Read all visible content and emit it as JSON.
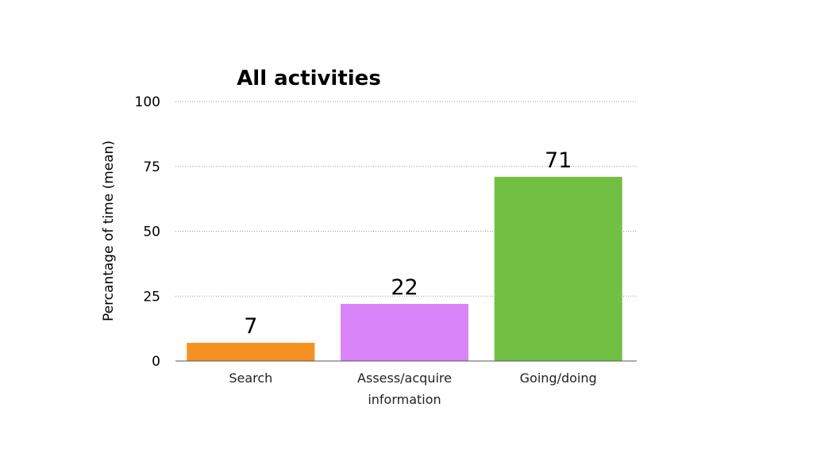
{
  "chart_data": {
    "type": "bar",
    "title": "All activities",
    "xlabel": "",
    "ylabel": "Percantage of time (mean)",
    "categories": [
      "Search",
      "Assess/acquire information",
      "Going/doing"
    ],
    "category_lines": [
      [
        "Search"
      ],
      [
        "Assess/acquire",
        "information"
      ],
      [
        "Going/doing"
      ]
    ],
    "values": [
      7,
      22,
      71
    ],
    "data_labels": [
      "7",
      "22",
      "71"
    ],
    "colors": [
      "#f59120",
      "#d884f8",
      "#72c043"
    ],
    "ylim": [
      0,
      100
    ],
    "yticks": [
      0,
      25,
      50,
      75,
      100
    ],
    "grid": true,
    "legend": "none"
  }
}
